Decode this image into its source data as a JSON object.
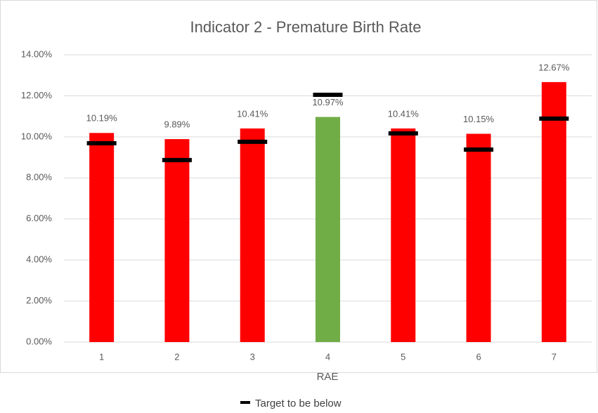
{
  "chart_data": {
    "type": "bar",
    "title": "Indicator 2 - Premature Birth Rate",
    "x_label": "RAE",
    "categories": [
      "1",
      "2",
      "3",
      "4",
      "5",
      "6",
      "7"
    ],
    "values": [
      10.19,
      9.89,
      10.41,
      10.97,
      10.41,
      10.15,
      12.67
    ],
    "value_labels": [
      "10.19%",
      "9.89%",
      "10.41%",
      "10.97%",
      "10.41%",
      "10.15%",
      "12.67%"
    ],
    "colors": [
      "#ff0000",
      "#ff0000",
      "#ff0000",
      "#70ad47",
      "#ff0000",
      "#ff0000",
      "#ff0000"
    ],
    "series": [
      {
        "name": "Target to be below",
        "color": "#000000",
        "values": [
          9.69,
          8.87,
          9.76,
          12.05,
          10.17,
          9.38,
          10.89
        ]
      }
    ],
    "ylim": [
      0,
      14
    ],
    "yticks": [
      {
        "value": 0,
        "label": "0.00%"
      },
      {
        "value": 2,
        "label": "2.00%"
      },
      {
        "value": 4,
        "label": "4.00%"
      },
      {
        "value": 6,
        "label": "6.00%"
      },
      {
        "value": 8,
        "label": "8.00%"
      },
      {
        "value": 10,
        "label": "10.00%"
      },
      {
        "value": 12,
        "label": "12.00%"
      },
      {
        "value": 14,
        "label": "14.00%"
      }
    ],
    "grid": true,
    "legend": "bottom"
  }
}
